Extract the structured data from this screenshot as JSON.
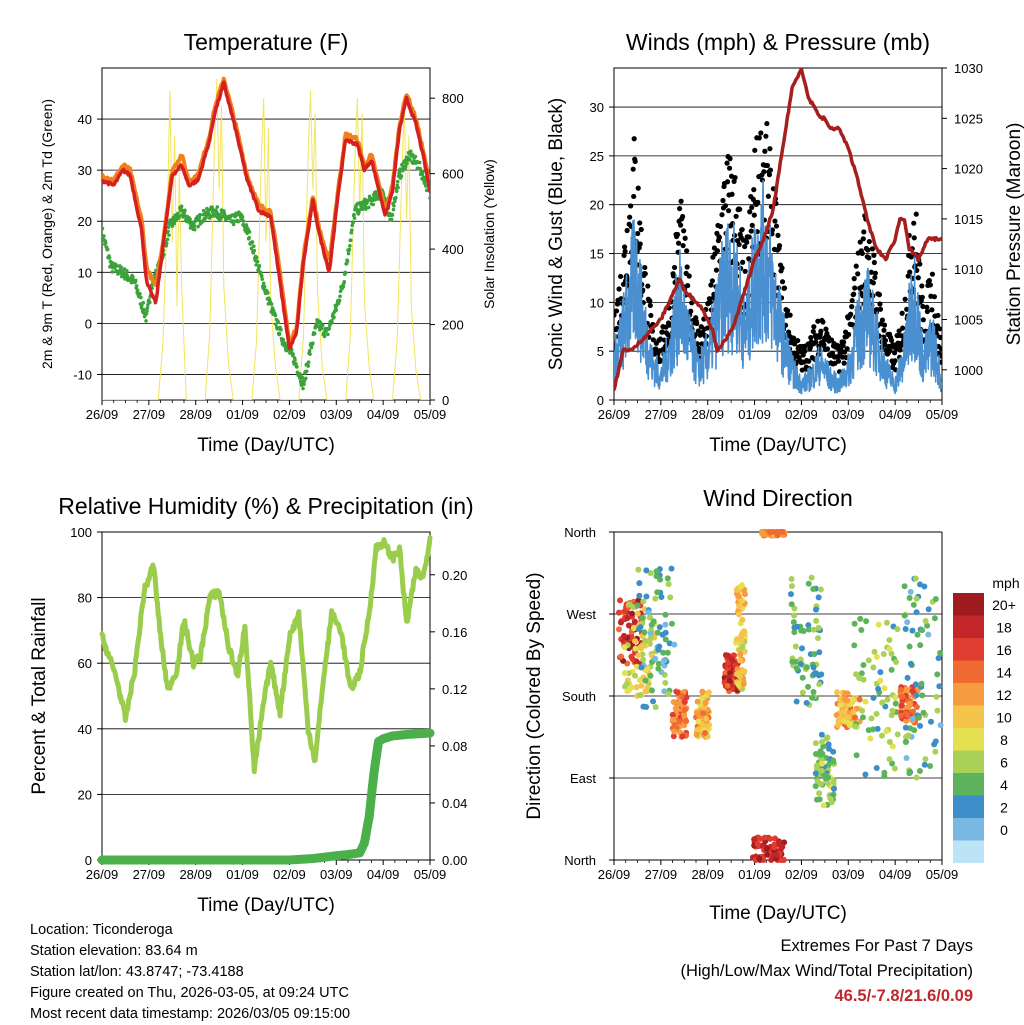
{
  "chart_data": [
    {
      "type": "line",
      "title": "Temperature (F)",
      "xlabel": "Time (Day/UTC)",
      "ylabel": "2m & 9m T (Red, Orange) & 2m Td (Green)",
      "y2label": "Solar Insolation (Yellow)",
      "x_ticks": [
        "26/09",
        "27/09",
        "28/09",
        "01/09",
        "02/09",
        "03/09",
        "04/09",
        "05/09"
      ],
      "xlim": [
        0,
        7
      ],
      "ylim": [
        -15,
        50
      ],
      "y_ticks": [
        -10,
        0,
        10,
        20,
        30,
        40
      ],
      "y2lim": [
        0,
        880
      ],
      "y2_ticks": [
        0,
        200,
        400,
        600,
        800
      ],
      "grid": "horizontal",
      "colors": {
        "t2m": "#d62020",
        "t9m": "#f07f1e",
        "td": "#3aa33a",
        "solar": "#f2e24a"
      },
      "series": [
        {
          "name": "2m T",
          "x": [
            0,
            0.25,
            0.45,
            0.6,
            0.85,
            0.95,
            1.15,
            1.3,
            1.5,
            1.7,
            1.85,
            2.05,
            2.3,
            2.4,
            2.6,
            2.85,
            3.1,
            3.35,
            3.6,
            3.8,
            4.0,
            4.15,
            4.3,
            4.5,
            4.65,
            4.85,
            5.05,
            5.2,
            5.45,
            5.6,
            5.75,
            6.05,
            6.2,
            6.35,
            6.5,
            6.7,
            6.85,
            7.0
          ],
          "y": [
            28,
            27,
            30,
            29,
            18,
            8,
            4,
            15,
            29,
            31,
            27,
            28,
            36,
            41,
            47,
            38,
            28,
            22,
            21,
            8,
            -5,
            -2,
            12,
            24,
            17,
            10,
            26,
            36,
            35,
            30,
            32,
            21,
            26,
            38,
            44,
            39,
            33,
            26
          ]
        },
        {
          "name": "9m T",
          "x": [
            0,
            0.25,
            0.45,
            0.6,
            0.85,
            0.95,
            1.15,
            1.3,
            1.5,
            1.7,
            1.85,
            2.05,
            2.3,
            2.4,
            2.6,
            2.85,
            3.1,
            3.35,
            3.6,
            3.8,
            4.0,
            4.15,
            4.3,
            4.5,
            4.65,
            4.85,
            5.05,
            5.2,
            5.45,
            5.6,
            5.75,
            6.05,
            6.2,
            6.35,
            6.5,
            6.7,
            6.85,
            7.0
          ],
          "y": [
            29,
            28,
            31,
            30,
            20,
            11,
            7,
            16,
            30,
            33,
            28,
            29,
            37,
            42,
            48,
            39,
            29,
            23,
            22,
            10,
            -4,
            -1,
            13,
            25,
            18,
            12,
            27,
            37,
            36,
            31,
            33,
            22,
            27,
            39,
            45,
            40,
            34,
            27
          ]
        },
        {
          "name": "2m Td",
          "x": [
            0,
            0.2,
            0.45,
            0.7,
            0.95,
            1.05,
            1.25,
            1.45,
            1.7,
            1.95,
            2.15,
            2.4,
            2.6,
            2.75,
            2.95,
            3.15,
            3.4,
            3.65,
            3.85,
            4.1,
            4.3,
            4.45,
            4.6,
            4.8,
            5.0,
            5.15,
            5.4,
            5.55,
            5.75,
            6.0,
            6.15,
            6.35,
            6.55,
            6.75,
            6.9,
            7.0
          ],
          "y": [
            18,
            11,
            10,
            8,
            1,
            7,
            12,
            19,
            22,
            19,
            21,
            22,
            21,
            20,
            21,
            17,
            9,
            2,
            -3,
            -7,
            -12,
            -5,
            0,
            -2,
            3,
            8,
            22,
            23,
            24,
            26,
            20,
            29,
            33,
            31,
            28,
            25
          ]
        },
        {
          "name": "Solar Insolation",
          "axis": "y2",
          "x": [
            0,
            0.1,
            0.2,
            0.3,
            0.4,
            1.0,
            1.2,
            1.3,
            1.4,
            1.45,
            1.5,
            1.55,
            1.6,
            1.65,
            1.7,
            1.8,
            2.0,
            2.2,
            2.3,
            2.4,
            2.45,
            2.5,
            2.55,
            2.6,
            2.7,
            2.8,
            3.0,
            3.2,
            3.3,
            3.4,
            3.45,
            3.5,
            3.55,
            3.6,
            3.7,
            3.8,
            4.0,
            4.2,
            4.3,
            4.4,
            4.45,
            4.5,
            4.55,
            4.6,
            4.7,
            4.8,
            5.0,
            5.2,
            5.3,
            5.4,
            5.45,
            5.5,
            5.55,
            5.6,
            5.7,
            5.8,
            6.0,
            6.2,
            6.3,
            6.4,
            6.45,
            6.5,
            6.55,
            6.6,
            6.7,
            6.8,
            7.0
          ],
          "y": [
            0,
            0,
            0,
            0,
            0,
            0,
            0,
            150,
            520,
            820,
            420,
            700,
            250,
            600,
            300,
            0,
            0,
            0,
            180,
            680,
            850,
            560,
            780,
            300,
            100,
            0,
            0,
            0,
            160,
            640,
            800,
            420,
            720,
            260,
            90,
            0,
            0,
            0,
            170,
            660,
            820,
            560,
            760,
            290,
            90,
            0,
            0,
            0,
            170,
            650,
            800,
            500,
            760,
            260,
            90,
            0,
            0,
            0,
            160,
            610,
            780,
            480,
            700,
            250,
            80,
            0,
            0
          ]
        }
      ]
    },
    {
      "type": "line",
      "title": "Winds (mph) & Pressure (mb)",
      "xlabel": "Time (Day/UTC)",
      "ylabel": "Sonic Wind & Gust (Blue, Black)",
      "y2label": "Station Pressure (Maroon)",
      "x_ticks": [
        "26/09",
        "27/09",
        "28/09",
        "01/09",
        "02/09",
        "03/09",
        "04/09",
        "05/09"
      ],
      "xlim": [
        0,
        7
      ],
      "ylim": [
        0,
        34
      ],
      "y_ticks": [
        0,
        5,
        10,
        15,
        20,
        25,
        30
      ],
      "y2lim": [
        997,
        1030
      ],
      "y2_ticks": [
        1000,
        1005,
        1010,
        1015,
        1020,
        1025,
        1030
      ],
      "grid": "horizontal",
      "colors": {
        "wind": "#4a90d0",
        "gust": "#000000",
        "pressure": "#a51f1f"
      },
      "series": [
        {
          "name": "Sonic Wind",
          "x": [
            0,
            0.15,
            0.3,
            0.45,
            0.6,
            0.8,
            1.0,
            1.2,
            1.4,
            1.6,
            1.8,
            2.0,
            2.2,
            2.4,
            2.6,
            2.8,
            3.0,
            3.2,
            3.4,
            3.6,
            3.8,
            4.0,
            4.2,
            4.4,
            4.6,
            4.8,
            5.0,
            5.2,
            5.4,
            5.6,
            5.8,
            6.0,
            6.2,
            6.4,
            6.6,
            6.8,
            7.0
          ],
          "y": [
            5,
            8,
            12,
            17,
            11,
            5,
            3,
            7,
            13,
            8,
            4,
            6,
            11,
            16,
            15,
            9,
            16,
            19,
            14,
            8,
            4,
            2,
            3,
            5,
            3,
            2,
            4,
            9,
            12,
            8,
            4,
            2,
            6,
            14,
            5,
            8,
            2
          ]
        },
        {
          "name": "Gust",
          "x": [
            0,
            0.15,
            0.3,
            0.45,
            0.6,
            0.8,
            1.0,
            1.2,
            1.4,
            1.6,
            1.8,
            2.0,
            2.2,
            2.4,
            2.6,
            2.8,
            3.0,
            3.2,
            3.4,
            3.6,
            3.8,
            4.0,
            4.2,
            4.4,
            4.6,
            4.8,
            5.0,
            5.2,
            5.4,
            5.6,
            5.8,
            6.0,
            6.2,
            6.4,
            6.6,
            6.8,
            7.0
          ],
          "y": [
            8,
            13,
            20,
            26,
            16,
            8,
            6,
            10,
            20,
            12,
            7,
            9,
            17,
            24,
            22,
            14,
            24,
            28,
            21,
            12,
            7,
            5,
            6,
            9,
            6,
            5,
            8,
            14,
            19,
            12,
            7,
            5,
            10,
            21,
            9,
            13,
            5
          ]
        },
        {
          "name": "Station Pressure",
          "axis": "y2",
          "x": [
            0,
            0.2,
            0.4,
            0.6,
            0.8,
            1.0,
            1.2,
            1.4,
            1.5,
            1.7,
            1.9,
            2.1,
            2.2,
            2.4,
            2.6,
            2.8,
            3.0,
            3.2,
            3.4,
            3.6,
            3.8,
            4.0,
            4.15,
            4.3,
            4.4,
            4.5,
            4.6,
            4.8,
            5.0,
            5.2,
            5.4,
            5.6,
            5.8,
            6.0,
            6.1,
            6.2,
            6.3,
            6.5,
            6.7,
            6.85,
            7.0
          ],
          "y": [
            998,
            1002,
            1002,
            1003,
            1004,
            1005,
            1007,
            1009,
            1008,
            1007,
            1006,
            1004,
            1002,
            1003,
            1005,
            1008,
            1011,
            1013,
            1016,
            1022,
            1028,
            1030,
            1027,
            1026,
            1025,
            1025,
            1024,
            1024,
            1022,
            1019,
            1015,
            1012,
            1011,
            1013,
            1015,
            1015,
            1012,
            1011,
            1013,
            1013,
            1013
          ]
        }
      ]
    },
    {
      "type": "line",
      "title": "Relative Humidity (%) & Precipitation (in)",
      "xlabel": "Time (Day/UTC)",
      "ylabel": "Percent & Total Rainfall",
      "x_ticks": [
        "26/09",
        "27/09",
        "28/09",
        "01/09",
        "02/09",
        "03/09",
        "04/09",
        "05/09"
      ],
      "xlim": [
        0,
        7
      ],
      "ylim": [
        0,
        100
      ],
      "y_ticks": [
        0,
        20,
        40,
        60,
        80,
        100
      ],
      "y2lim": [
        0,
        0.23
      ],
      "y2_ticks": [
        "0.00",
        "0.04",
        "0.08",
        "0.12",
        "0.16",
        "0.20"
      ],
      "grid": "horizontal",
      "colors": {
        "rh": "#9bcd4c",
        "precip": "#4cb04a"
      },
      "series": [
        {
          "name": "Relative Humidity",
          "x": [
            0,
            0.15,
            0.3,
            0.5,
            0.7,
            0.9,
            1.1,
            1.25,
            1.4,
            1.6,
            1.75,
            1.95,
            2.1,
            2.3,
            2.5,
            2.7,
            2.9,
            3.05,
            3.25,
            3.45,
            3.6,
            3.8,
            4.0,
            4.2,
            4.4,
            4.55,
            4.7,
            4.9,
            5.1,
            5.3,
            5.5,
            5.7,
            5.85,
            6.0,
            6.2,
            6.35,
            6.5,
            6.7,
            6.85,
            7.0
          ],
          "y": [
            68,
            62,
            56,
            43,
            58,
            82,
            90,
            68,
            52,
            58,
            73,
            60,
            62,
            80,
            82,
            65,
            56,
            72,
            27,
            48,
            60,
            45,
            68,
            75,
            40,
            30,
            52,
            75,
            70,
            52,
            57,
            75,
            95,
            97,
            92,
            95,
            72,
            88,
            86,
            98
          ]
        },
        {
          "name": "Total Rainfall",
          "axis": "y2",
          "x": [
            0,
            1,
            2,
            3,
            4,
            4.5,
            5.0,
            5.3,
            5.5,
            5.6,
            5.7,
            5.8,
            5.9,
            6.0,
            6.2,
            6.5,
            7.0
          ],
          "y": [
            0,
            0,
            0,
            0,
            0,
            0.001,
            0.003,
            0.004,
            0.005,
            0.012,
            0.03,
            0.06,
            0.083,
            0.085,
            0.087,
            0.088,
            0.089
          ]
        }
      ]
    },
    {
      "type": "scatter",
      "title": "Wind Direction",
      "xlabel": "Time (Day/UTC)",
      "ylabel": "Direction (Colored By Speed)",
      "x_ticks": [
        "26/09",
        "27/09",
        "28/09",
        "01/09",
        "02/09",
        "03/09",
        "04/09",
        "05/09"
      ],
      "xlim": [
        0,
        7
      ],
      "ylim": [
        0,
        360
      ],
      "y_ticks": [
        "North",
        "East",
        "South",
        "West",
        "North"
      ],
      "grid": "horizontal",
      "colorbar": {
        "title": "mph",
        "labels": [
          "20+",
          "18",
          "16",
          "14",
          "12",
          "10",
          "8",
          "6",
          "4",
          "2",
          "0"
        ],
        "colors": [
          "#9e1b1f",
          "#c32628",
          "#e03c2f",
          "#f06b31",
          "#f79b40",
          "#f5c44b",
          "#e4e050",
          "#a9d157",
          "#5cb35b",
          "#3b8ec8",
          "#7ab8e4",
          "#bde3f7"
        ]
      },
      "clusters": [
        {
          "x": 0.35,
          "dir": 250,
          "speed": 17,
          "spread": 0.25,
          "dspread": 35
        },
        {
          "x": 0.55,
          "dir": 235,
          "speed": 8,
          "spread": 0.35,
          "dspread": 55
        },
        {
          "x": 0.9,
          "dir": 240,
          "speed": 3,
          "spread": 0.4,
          "dspread": 80
        },
        {
          "x": 1.4,
          "dir": 160,
          "speed": 14,
          "spread": 0.15,
          "dspread": 25
        },
        {
          "x": 1.9,
          "dir": 160,
          "speed": 11,
          "spread": 0.15,
          "dspread": 25
        },
        {
          "x": 2.5,
          "dir": 205,
          "speed": 17,
          "spread": 0.15,
          "dspread": 20
        },
        {
          "x": 2.7,
          "dir": 245,
          "speed": 9,
          "spread": 0.1,
          "dspread": 60
        },
        {
          "x": 3.3,
          "dir": 10,
          "speed": 18,
          "spread": 0.35,
          "dspread": 15
        },
        {
          "x": 3.4,
          "dir": 360,
          "speed": 12,
          "spread": 0.25,
          "dspread": 4
        },
        {
          "x": 4.1,
          "dir": 240,
          "speed": 4,
          "spread": 0.35,
          "dspread": 70
        },
        {
          "x": 4.5,
          "dir": 100,
          "speed": 5,
          "spread": 0.2,
          "dspread": 40
        },
        {
          "x": 5.0,
          "dir": 165,
          "speed": 11,
          "spread": 0.25,
          "dspread": 20
        },
        {
          "x": 5.6,
          "dir": 180,
          "speed": 5,
          "spread": 0.5,
          "dspread": 90
        },
        {
          "x": 6.3,
          "dir": 170,
          "speed": 14,
          "spread": 0.2,
          "dspread": 20
        },
        {
          "x": 6.6,
          "dir": 200,
          "speed": 3,
          "spread": 0.4,
          "dspread": 110
        }
      ]
    }
  ],
  "info": {
    "location": "Location: Ticonderoga",
    "elevation": "Station elevation: 83.64 m",
    "latlon": "Station lat/lon: 43.8747; -73.4188",
    "created": "Figure created on Thu, 2026-03-05, at 09:24 UTC",
    "recent": "Most recent data timestamp: 2026/03/05 09:15:00"
  },
  "extremes": {
    "title": "Extremes For Past 7 Days",
    "subtitle": "(High/Low/Max Wind/Total Precipitation)",
    "value": "46.5/-7.8/21.6/0.09"
  }
}
